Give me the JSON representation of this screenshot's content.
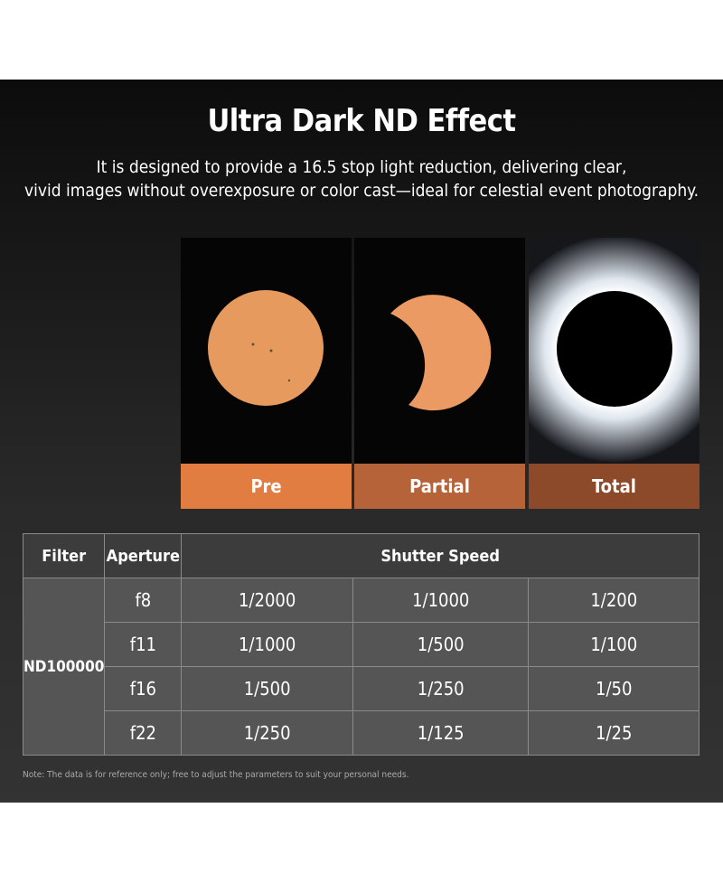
{
  "header": {
    "title": "Ultra Dark ND Effect",
    "subtitle": [
      "It is designed to provide a 16.5 stop light reduction, delivering clear,",
      "vivid images without overexposure or color cast—ideal for celestial event photography."
    ]
  },
  "panels": [
    {
      "label": "Pre"
    },
    {
      "label": "Partial"
    },
    {
      "label": "Total"
    }
  ],
  "table": {
    "headers": [
      "Filter",
      "Aperture",
      "Shutter Speed"
    ],
    "filter": "ND100000",
    "rows": [
      {
        "aperture": "f8",
        "speeds": [
          "1/2000",
          "1/1000",
          "1/200"
        ]
      },
      {
        "aperture": "f11",
        "speeds": [
          "1/1000",
          "1/500",
          "1/100"
        ]
      },
      {
        "aperture": "f16",
        "speeds": [
          "1/500",
          "1/250",
          "1/50"
        ]
      },
      {
        "aperture": "f22",
        "speeds": [
          "1/250",
          "1/125",
          "1/25"
        ]
      }
    ]
  },
  "note": "Note: The data is for reference only; free to adjust the parameters to suit your personal needs."
}
